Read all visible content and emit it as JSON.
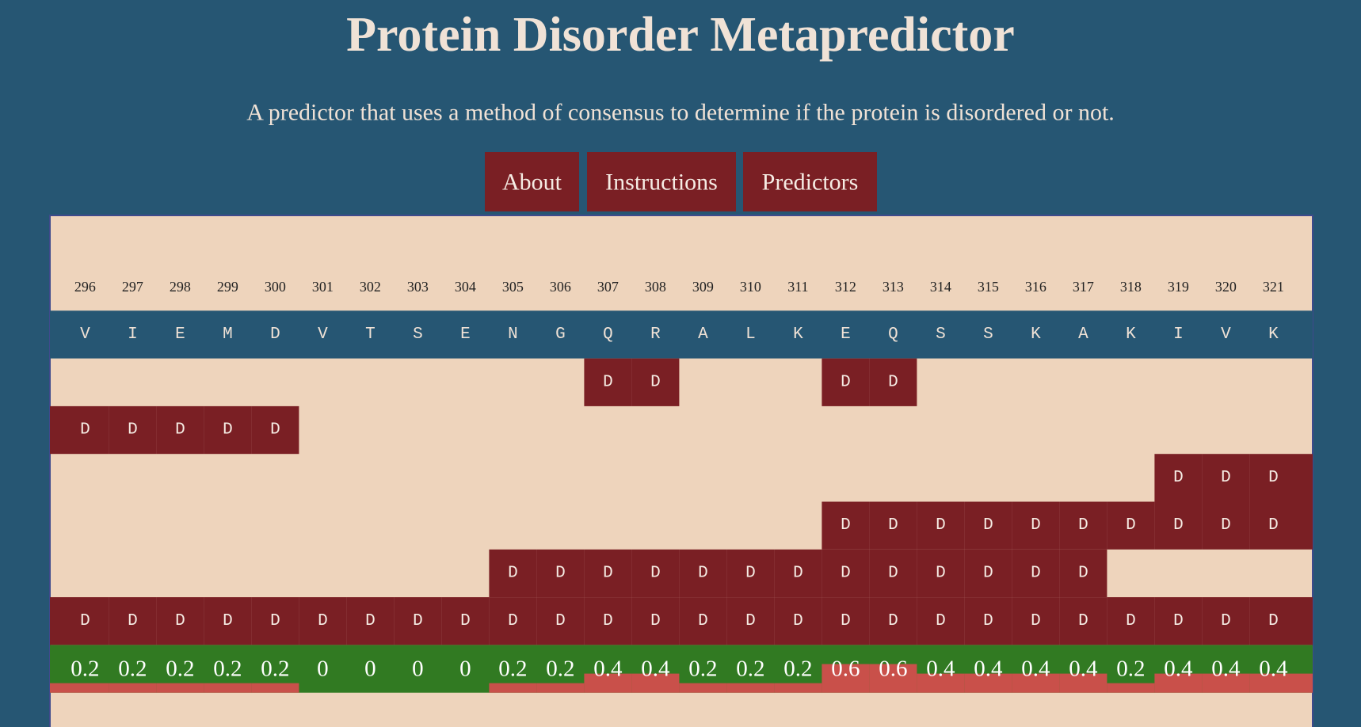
{
  "header": {
    "title": "Protein Disorder Metapredictor",
    "subtitle": "A predictor that uses a method of consensus to determine if the protein is disordered or not."
  },
  "nav": [
    "About",
    "Instructions",
    "Predictors"
  ],
  "positions": [
    296,
    297,
    298,
    299,
    300,
    301,
    302,
    303,
    304,
    305,
    306,
    307,
    308,
    309,
    310,
    311,
    312,
    313,
    314,
    315,
    316,
    317,
    318,
    319,
    320,
    321
  ],
  "residues": [
    "V",
    "I",
    "E",
    "M",
    "D",
    "V",
    "T",
    "S",
    "E",
    "N",
    "G",
    "Q",
    "R",
    "A",
    "L",
    "K",
    "E",
    "Q",
    "S",
    "S",
    "K",
    "A",
    "K",
    "I",
    "V",
    "K"
  ],
  "predictors": [
    [
      null,
      null,
      null,
      null,
      null,
      null,
      null,
      null,
      null,
      null,
      null,
      "D",
      "D",
      null,
      null,
      null,
      "D",
      "D",
      null,
      null,
      null,
      null,
      null,
      null,
      null,
      null
    ],
    [
      "D",
      "D",
      "D",
      "D",
      "D",
      null,
      null,
      null,
      null,
      null,
      null,
      null,
      null,
      null,
      null,
      null,
      null,
      null,
      null,
      null,
      null,
      null,
      null,
      null,
      null,
      null
    ],
    [
      null,
      null,
      null,
      null,
      null,
      null,
      null,
      null,
      null,
      null,
      null,
      null,
      null,
      null,
      null,
      null,
      null,
      null,
      null,
      null,
      null,
      null,
      null,
      "D",
      "D",
      "D"
    ],
    [
      null,
      null,
      null,
      null,
      null,
      null,
      null,
      null,
      null,
      null,
      null,
      null,
      null,
      null,
      null,
      null,
      "D",
      "D",
      "D",
      "D",
      "D",
      "D",
      "D",
      "D",
      "D",
      "D"
    ],
    [
      null,
      null,
      null,
      null,
      null,
      null,
      null,
      null,
      null,
      "D",
      "D",
      "D",
      "D",
      "D",
      "D",
      "D",
      "D",
      "D",
      "D",
      "D",
      "D",
      "D",
      null,
      null,
      null,
      null
    ]
  ],
  "consensus": [
    "D",
    "D",
    "D",
    "D",
    "D",
    "D",
    "D",
    "D",
    "D",
    "D",
    "D",
    "D",
    "D",
    "D",
    "D",
    "D",
    "D",
    "D",
    "D",
    "D",
    "D",
    "D",
    "D",
    "D",
    "D",
    "D"
  ],
  "scores": [
    0.2,
    0.2,
    0.2,
    0.2,
    0.2,
    0,
    0,
    0,
    0,
    0.2,
    0.2,
    0.4,
    0.4,
    0.2,
    0.2,
    0.2,
    0.6,
    0.6,
    0.4,
    0.4,
    0.4,
    0.4,
    0.2,
    0.4,
    0.4,
    0.4
  ]
}
